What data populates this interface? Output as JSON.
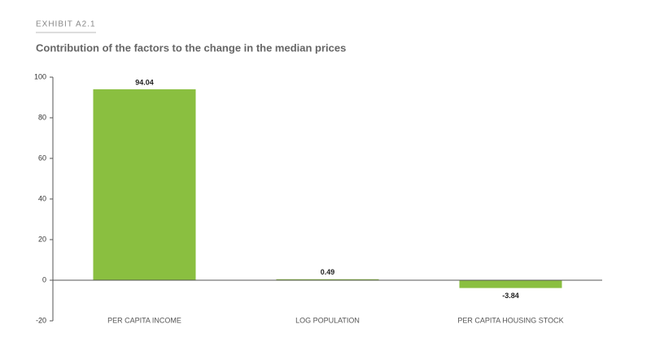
{
  "chart_data": {
    "type": "bar",
    "exhibit": "EXHIBIT A2.1",
    "title": "Contribution of the factors to the change in the median prices",
    "categories": [
      "PER CAPITA INCOME",
      "LOG POPULATION",
      "PER CAPITA HOUSING STOCK"
    ],
    "values": [
      94.04,
      0.49,
      -3.84
    ],
    "color": "#8abf40",
    "ylim": [
      -20,
      100
    ],
    "yticks": [
      -20,
      0,
      20,
      40,
      60,
      80,
      100
    ],
    "grid": false
  }
}
